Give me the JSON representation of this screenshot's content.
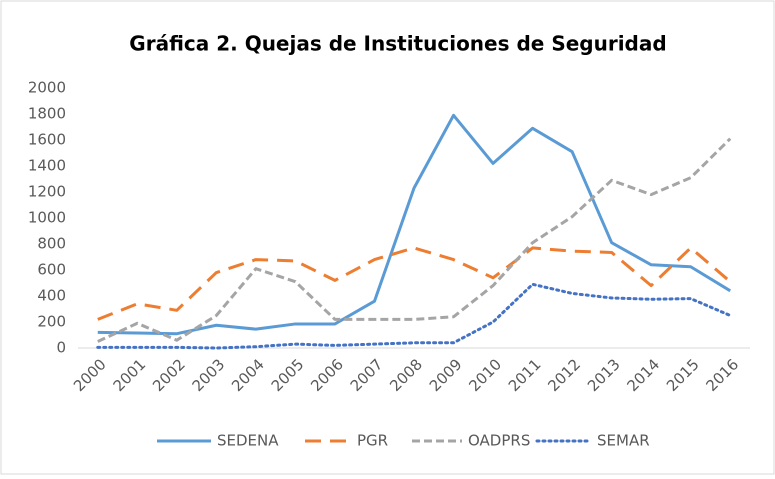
{
  "chart_data": {
    "type": "line",
    "title": "Gráfica 2. Quejas de Instituciones de Seguridad",
    "categories": [
      "2000",
      "2001",
      "2002",
      "2003",
      "2004",
      "2005",
      "2006",
      "2007",
      "2008",
      "2009",
      "2010",
      "2011",
      "2012",
      "2013",
      "2014",
      "2015",
      "2016"
    ],
    "series": [
      {
        "name": "SEDENA",
        "color": "#5b9bd5",
        "values": [
          120,
          115,
          110,
          175,
          145,
          185,
          185,
          360,
          1230,
          1790,
          1420,
          1690,
          1510,
          810,
          640,
          625,
          440
        ]
      },
      {
        "name": "PGR",
        "color": "#ed7d31",
        "values": [
          220,
          340,
          290,
          580,
          680,
          670,
          520,
          680,
          770,
          680,
          540,
          770,
          745,
          735,
          480,
          770,
          510
        ]
      },
      {
        "name": "OADPRS",
        "color": "#a5a5a5",
        "values": [
          50,
          190,
          60,
          250,
          610,
          510,
          220,
          220,
          220,
          240,
          480,
          810,
          1010,
          1290,
          1180,
          1310,
          1610
        ]
      },
      {
        "name": "SEMAR",
        "color": "#4472c4",
        "values": [
          5,
          5,
          5,
          0,
          10,
          30,
          20,
          30,
          40,
          40,
          200,
          490,
          420,
          385,
          375,
          380,
          250
        ]
      }
    ],
    "ylim": [
      0,
      2000
    ],
    "yticks": [
      0,
      200,
      400,
      600,
      800,
      1000,
      1200,
      1400,
      1600,
      1800,
      2000
    ],
    "grid": false,
    "legend": "bottom"
  }
}
